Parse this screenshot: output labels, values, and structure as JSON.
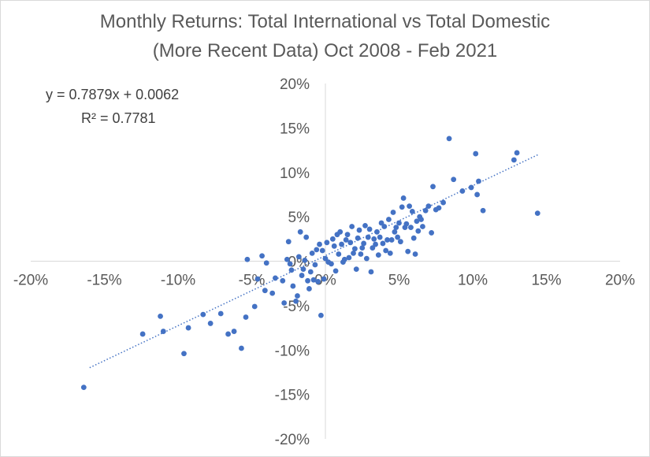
{
  "chart_data": {
    "type": "scatter",
    "title": "Monthly Returns: Total International vs Total Domestic",
    "subtitle": "(More Recent Data) Oct 2008 - Feb 2021",
    "xlim": [
      -20,
      20
    ],
    "ylim": [
      -20,
      20
    ],
    "x_ticks": [
      "-20%",
      "-15%",
      "-10%",
      "-5%",
      "0%",
      "5%",
      "10%",
      "15%",
      "20%"
    ],
    "y_ticks": [
      "20%",
      "15%",
      "10%",
      "5%",
      "0%",
      "-5%",
      "-10%",
      "-15%",
      "-20%"
    ],
    "grid": false,
    "point_color": "#4472c4",
    "trendline": {
      "style": "dotted",
      "slope": 0.7879,
      "intercept": 0.0062,
      "x_range": [
        -16,
        14.5
      ],
      "equation_label": "y = 0.7879x + 0.0062",
      "r2_label": "R² = 0.7781"
    },
    "points": [
      [
        -16.4,
        -14.2
      ],
      [
        -12.4,
        -8.2
      ],
      [
        -11.2,
        -6.2
      ],
      [
        -11.0,
        -7.9
      ],
      [
        -9.6,
        -10.4
      ],
      [
        -9.3,
        -7.5
      ],
      [
        -8.3,
        -6.0
      ],
      [
        -7.8,
        -7.0
      ],
      [
        -7.1,
        -5.9
      ],
      [
        -6.6,
        -8.2
      ],
      [
        -6.2,
        -7.9
      ],
      [
        -5.7,
        -9.8
      ],
      [
        -5.4,
        -6.3
      ],
      [
        -5.3,
        0.2
      ],
      [
        -4.8,
        -5.1
      ],
      [
        -4.6,
        -2.0
      ],
      [
        -4.3,
        0.6
      ],
      [
        -4.1,
        -3.3
      ],
      [
        -4.0,
        -0.2
      ],
      [
        -3.6,
        -3.6
      ],
      [
        -3.4,
        -1.9
      ],
      [
        -2.9,
        -2.2
      ],
      [
        -2.8,
        -4.7
      ],
      [
        -2.6,
        0.2
      ],
      [
        -2.5,
        2.2
      ],
      [
        -2.4,
        -0.3
      ],
      [
        -2.3,
        -1.0
      ],
      [
        -2.2,
        -2.8
      ],
      [
        -2.0,
        -4.5
      ],
      [
        -1.9,
        -3.9
      ],
      [
        -1.8,
        0.5
      ],
      [
        -1.7,
        3.3
      ],
      [
        -1.6,
        -1.6
      ],
      [
        -1.5,
        -0.9
      ],
      [
        -1.4,
        0.1
      ],
      [
        -1.3,
        2.7
      ],
      [
        -1.2,
        -2.2
      ],
      [
        -1.1,
        -3.1
      ],
      [
        -1.0,
        -1.2
      ],
      [
        -0.9,
        0.9
      ],
      [
        -0.8,
        -2.1
      ],
      [
        -0.7,
        -0.4
      ],
      [
        -0.6,
        1.3
      ],
      [
        -0.5,
        -2.3
      ],
      [
        -0.4,
        1.9
      ],
      [
        -0.3,
        -6.1
      ],
      [
        -0.2,
        1.2
      ],
      [
        -0.1,
        -2.0
      ],
      [
        0.0,
        0.3
      ],
      [
        0.1,
        2.1
      ],
      [
        0.2,
        -0.1
      ],
      [
        0.4,
        -0.3
      ],
      [
        0.5,
        2.5
      ],
      [
        0.6,
        1.7
      ],
      [
        0.7,
        -1.1
      ],
      [
        0.8,
        3.0
      ],
      [
        0.9,
        0.8
      ],
      [
        1.0,
        3.3
      ],
      [
        1.1,
        1.9
      ],
      [
        1.2,
        -0.1
      ],
      [
        1.3,
        0.2
      ],
      [
        1.4,
        2.4
      ],
      [
        1.5,
        3.0
      ],
      [
        1.6,
        0.4
      ],
      [
        1.7,
        2.1
      ],
      [
        1.8,
        3.9
      ],
      [
        1.9,
        0.9
      ],
      [
        2.0,
        1.4
      ],
      [
        2.1,
        -0.9
      ],
      [
        2.2,
        2.6
      ],
      [
        2.3,
        3.5
      ],
      [
        2.4,
        0.8
      ],
      [
        2.5,
        1.5
      ],
      [
        2.6,
        2.0
      ],
      [
        2.7,
        4.0
      ],
      [
        2.8,
        0.3
      ],
      [
        2.9,
        2.7
      ],
      [
        3.0,
        3.6
      ],
      [
        3.1,
        -1.2
      ],
      [
        3.2,
        1.5
      ],
      [
        3.3,
        2.5
      ],
      [
        3.4,
        1.9
      ],
      [
        3.5,
        3.3
      ],
      [
        3.6,
        0.7
      ],
      [
        3.7,
        2.7
      ],
      [
        3.8,
        4.3
      ],
      [
        3.9,
        2.0
      ],
      [
        4.0,
        3.9
      ],
      [
        4.1,
        1.2
      ],
      [
        4.2,
        2.4
      ],
      [
        4.3,
        4.7
      ],
      [
        4.4,
        0.9
      ],
      [
        4.5,
        2.4
      ],
      [
        4.6,
        5.5
      ],
      [
        4.7,
        3.3
      ],
      [
        4.8,
        3.8
      ],
      [
        4.9,
        2.7
      ],
      [
        5.0,
        4.3
      ],
      [
        5.1,
        2.2
      ],
      [
        5.2,
        6.1
      ],
      [
        5.3,
        7.1
      ],
      [
        5.4,
        3.8
      ],
      [
        5.5,
        4.2
      ],
      [
        5.6,
        1.1
      ],
      [
        5.7,
        6.2
      ],
      [
        5.8,
        3.8
      ],
      [
        5.9,
        5.6
      ],
      [
        6.0,
        2.6
      ],
      [
        6.1,
        0.8
      ],
      [
        6.2,
        4.5
      ],
      [
        6.3,
        3.4
      ],
      [
        6.4,
        5.0
      ],
      [
        6.5,
        4.7
      ],
      [
        6.6,
        3.9
      ],
      [
        6.8,
        5.7
      ],
      [
        7.0,
        6.2
      ],
      [
        7.2,
        3.2
      ],
      [
        7.3,
        8.4
      ],
      [
        7.5,
        5.8
      ],
      [
        7.7,
        6.0
      ],
      [
        8.0,
        6.6
      ],
      [
        8.4,
        13.8
      ],
      [
        8.7,
        9.2
      ],
      [
        9.3,
        7.9
      ],
      [
        9.9,
        8.3
      ],
      [
        10.2,
        12.1
      ],
      [
        10.3,
        7.5
      ],
      [
        10.4,
        9.0
      ],
      [
        10.7,
        5.7
      ],
      [
        12.8,
        11.4
      ],
      [
        13.0,
        12.2
      ],
      [
        14.4,
        5.4
      ]
    ]
  }
}
